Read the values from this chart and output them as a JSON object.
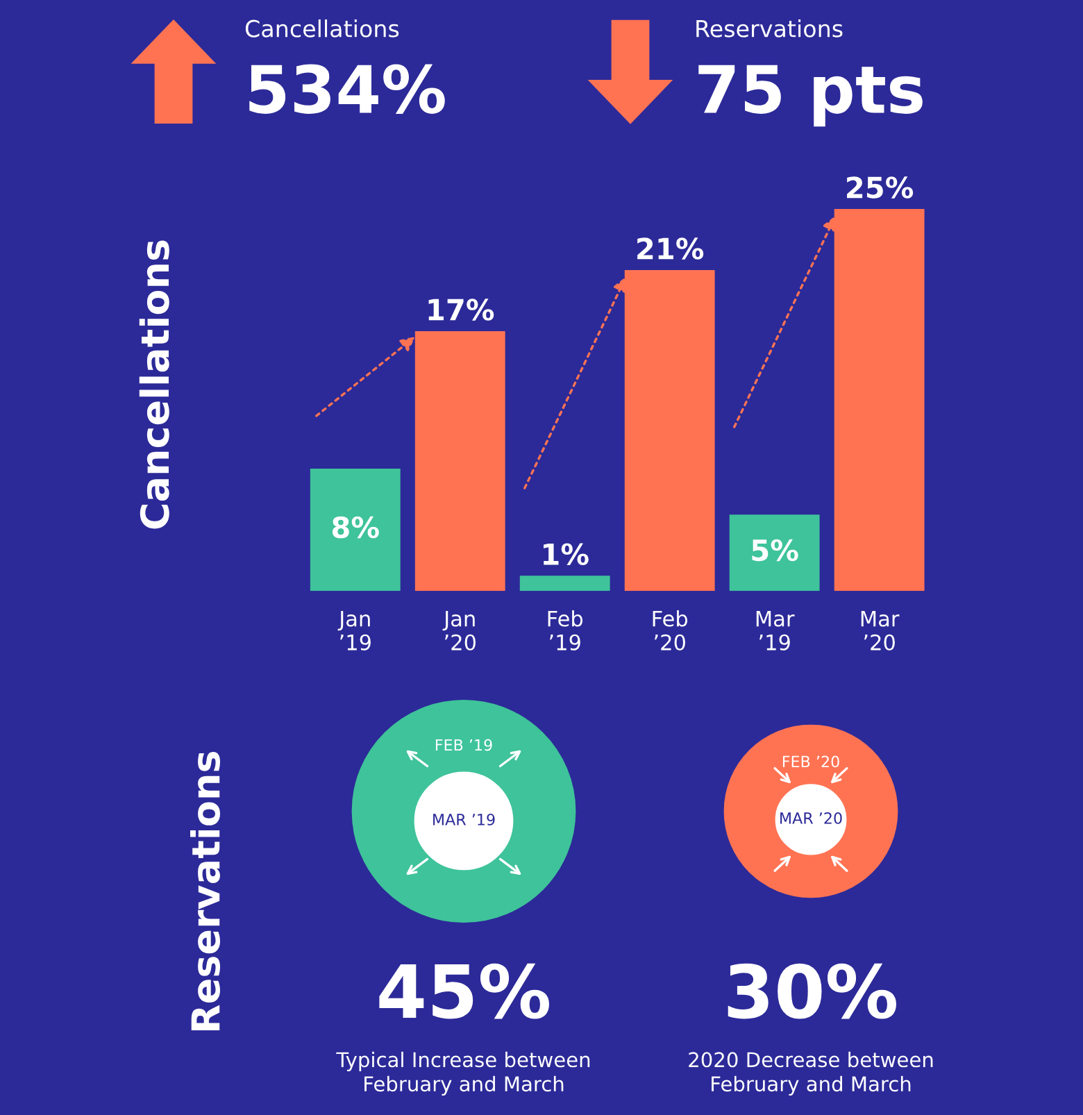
{
  "chart_data": [
    {
      "type": "other",
      "annotations": [
        "Cancellations",
        "534%",
        "Reservations",
        "75 pts"
      ]
    },
    {
      "type": "bar",
      "ylabel": "Cancellations",
      "categories": [
        "Jan\n’19",
        "Jan\n’20",
        "Feb\n’19",
        "Feb\n’20",
        "Mar\n’19",
        "Mar\n’20"
      ],
      "values": [
        8,
        17,
        1,
        21,
        5,
        25
      ],
      "colors": [
        "#3fc39a",
        "#ff7353",
        "#3fc39a",
        "#ff7353",
        "#3fc39a",
        "#ff7353"
      ],
      "value_labels": [
        "8%",
        "17%",
        "1%",
        "21%",
        "5%",
        "25%"
      ]
    },
    {
      "type": "other",
      "ylabel": "Reservations",
      "annotations": [
        "FEB ’19",
        "MAR ’19",
        "FEB ’20",
        "MAR ’20",
        "45%",
        "Typical Increase between\nFebruary and March",
        "30%",
        "2020 Decrease between\nFebruary and March"
      ]
    }
  ]
}
